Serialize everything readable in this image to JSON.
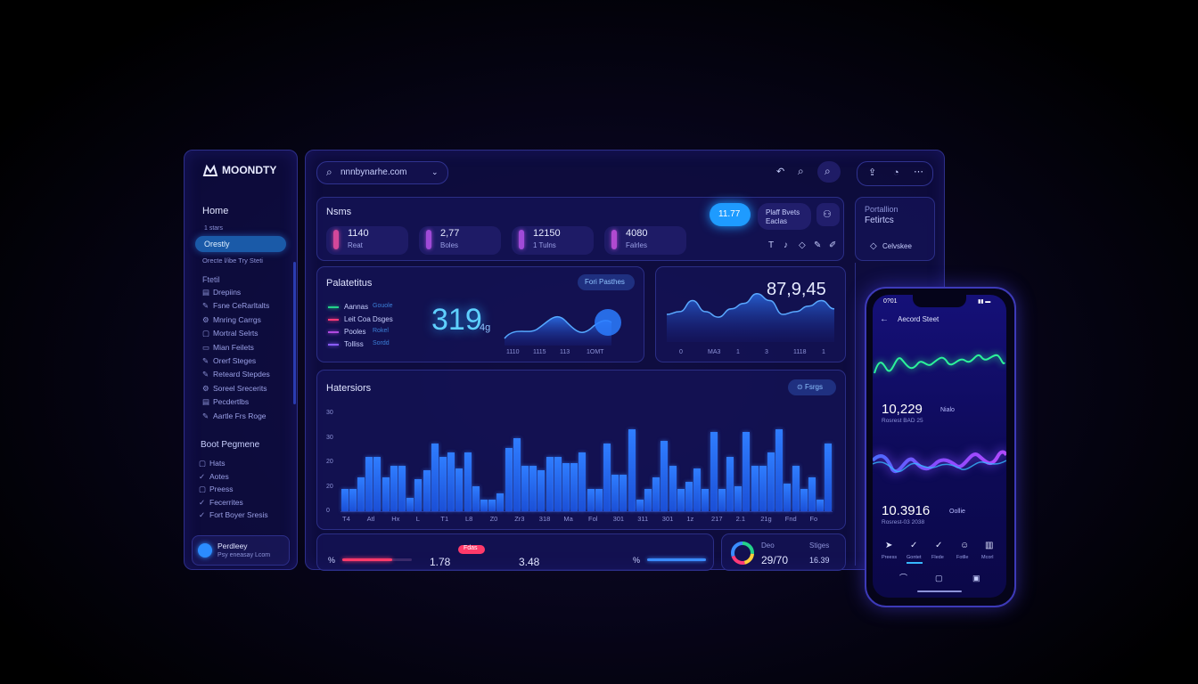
{
  "brand": {
    "name": "MOONDTY"
  },
  "sidebar": {
    "home_label": "Home",
    "home_sub": "1 stars",
    "active_label": "Orestly",
    "active_sub": "Orecte l/ibe Try Steti",
    "group1_header": "Ftetil",
    "group1_items": [
      {
        "label": "Drepiins",
        "icon": "chart-icon"
      },
      {
        "label": "Fsne CeRarltalts",
        "icon": "edit-icon"
      },
      {
        "label": "Mnring Carrgs",
        "icon": "settings-icon"
      },
      {
        "label": "Mortral Selrts",
        "icon": "box-icon"
      },
      {
        "label": "Mian Feilets",
        "icon": "folder-icon"
      },
      {
        "label": "Orerf Steges",
        "icon": "edit-icon"
      },
      {
        "label": "Reteard Stepdes",
        "icon": "edit-icon"
      },
      {
        "label": "Soreel Srecerits",
        "icon": "settings-icon"
      },
      {
        "label": "Pecdertlbs",
        "icon": "chart-icon"
      },
      {
        "label": "Aartle Frs Roge",
        "icon": "edit-icon"
      }
    ],
    "group2_header": "Boot Pegmene",
    "group2_items": [
      {
        "label": "Hats",
        "icon": "box-icon"
      },
      {
        "label": "Aotes",
        "icon": "check-icon"
      },
      {
        "label": "Preess",
        "icon": "box-icon"
      },
      {
        "label": "Fecerrites",
        "icon": "check-icon"
      },
      {
        "label": "Fort Boyer Sresis",
        "icon": "check-icon"
      }
    ],
    "profile_name": "Perdleey",
    "profile_email": "Psy eneasay Lcom"
  },
  "topbar": {
    "search_value": "nnnbynarhe.com",
    "icons": [
      "refresh-icon",
      "search-icon",
      "zoom-icon"
    ],
    "right_icons": [
      "share-icon",
      "timer-icon",
      "more-icon"
    ]
  },
  "names_card": {
    "title": "Nsms",
    "stats": [
      {
        "value": "1140",
        "label": "Reat",
        "color": "#d2489a"
      },
      {
        "value": "2,77",
        "label": "Boles",
        "color": "#a04ad8"
      },
      {
        "value": "12150",
        "label": "1 Tulns",
        "color": "#a04ad8"
      },
      {
        "value": "4080",
        "label": "Falrles",
        "color": "#b04ad0"
      }
    ],
    "pill_value": "11.77",
    "btn_line1": "Plaff Bvets",
    "btn_line2": "Eaclas",
    "tool_icons": [
      "T",
      "♪",
      "◇",
      "✎",
      "✐"
    ]
  },
  "side_card": {
    "line1": "Portallion",
    "line2": "Fetirtcs",
    "button_label": "Celvskee"
  },
  "palette_card": {
    "title": "Palatetitus",
    "button": "Fori Pasthes",
    "legend": [
      {
        "label": "Aannas",
        "tag": "Gouole",
        "color": "#23d28a"
      },
      {
        "label": "Leit Coa Dsges",
        "tag": "",
        "color": "#ff3a78"
      },
      {
        "label": "Pooles",
        "tag": "Rokel",
        "color": "#b04adf"
      },
      {
        "label": "Tolliss",
        "tag": "Sordd",
        "color": "#8a5cff"
      }
    ],
    "big_value": "319",
    "big_unit": "4g",
    "x_ticks": [
      "1110",
      "1115",
      "113",
      "1OMT"
    ]
  },
  "stat_card": {
    "value": "87,9,45",
    "x_ticks": [
      "0",
      "MA3",
      "1",
      "3",
      "1118",
      "1"
    ]
  },
  "histogram": {
    "title": "Hatersiors",
    "button": "Fsrgs"
  },
  "chart_data": [
    {
      "type": "bar",
      "title": "Hatersiors",
      "y_ticks": [
        "30",
        "30",
        "20",
        "20",
        "0"
      ],
      "x_tick_labels": [
        "T4",
        "Atl",
        "Hx",
        "L",
        "T1",
        "L8",
        "Z0",
        "Zr3",
        "318",
        "Ma",
        "Fol",
        "301",
        "311",
        "301",
        "1z",
        "217",
        "2.1",
        "21g",
        "Fnd",
        "Fo"
      ],
      "values": [
        10,
        10,
        15,
        24,
        24,
        15,
        20,
        20,
        6,
        14,
        18,
        30,
        24,
        26,
        19,
        26,
        11,
        5,
        5,
        8,
        28,
        32,
        20,
        20,
        18,
        24,
        24,
        21,
        21,
        26,
        10,
        10,
        30,
        16,
        16,
        36,
        5,
        10,
        15,
        31,
        20,
        10,
        13,
        19,
        10,
        35,
        10,
        24,
        11,
        35,
        20,
        20,
        26,
        36,
        12,
        20,
        10,
        15,
        5,
        30
      ]
    },
    {
      "type": "area",
      "series": [
        {
          "values": [
            20,
            22,
            30,
            22,
            18,
            24,
            28,
            35,
            30,
            20,
            22,
            26,
            30,
            24
          ]
        }
      ]
    }
  ],
  "bottom_card": {
    "value1": "1.78",
    "badge": "Fdas",
    "value2": "3.48",
    "pct_left": "%",
    "pct_right": "%"
  },
  "donut_card": {
    "label1": "Deo",
    "value1": "29/70",
    "label2": "Stiges",
    "value2": "16.39"
  },
  "phone": {
    "time": "0?01",
    "header": "Aecord Steet",
    "metric1_value": "10,229",
    "metric1_tag": "Nialo",
    "metric1_sub": "Rosrest BAD 25",
    "metric2_value": "10.3916",
    "metric2_tag": "Oollie",
    "metric2_sub": "Rosrest-03 2038",
    "tabs": [
      {
        "label": "Preess",
        "icon": "send-icon"
      },
      {
        "label": "Gontet",
        "icon": "check-icon"
      },
      {
        "label": "Flede",
        "icon": "check-icon"
      },
      {
        "label": "Fotlle",
        "icon": "face-icon"
      },
      {
        "label": "Mcorl",
        "icon": "book-icon"
      }
    ]
  },
  "colors": {
    "accent": "#2f7dff",
    "cyan": "#36b7ff",
    "bg": "#07051a"
  }
}
